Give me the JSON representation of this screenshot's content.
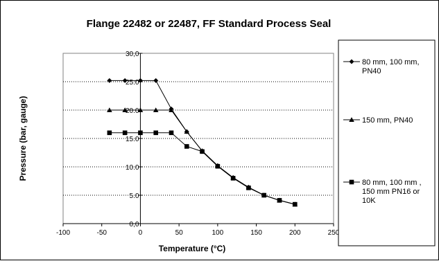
{
  "chart_data": {
    "type": "line",
    "title": "Flange 22482 or 22487, FF Standard Process Seal",
    "xlabel": "Temperature (°C)",
    "ylabel": "Pressure (bar, gauge)",
    "xlim": [
      -100,
      250
    ],
    "ylim": [
      0,
      30
    ],
    "x_ticks": [
      "-100",
      "-50",
      "0",
      "50",
      "100",
      "150",
      "200",
      "250"
    ],
    "y_ticks": [
      "0,0",
      "5.0",
      "10.0",
      "15.0",
      "20.0",
      "25.0",
      "30,0"
    ],
    "grid": "horizontal dotted",
    "legend_position": "right",
    "series": [
      {
        "name": [
          "80 mm, 100 mm,",
          "PN40"
        ],
        "marker": "diamond",
        "points": [
          [
            -40,
            25.2
          ],
          [
            -20,
            25.2
          ],
          [
            0,
            25.2
          ],
          [
            20,
            25.2
          ],
          [
            40,
            20.2
          ],
          [
            60,
            16.2
          ],
          [
            80,
            12.8
          ],
          [
            100,
            10.2
          ],
          [
            120,
            8.1
          ],
          [
            140,
            6.4
          ],
          [
            160,
            5.0
          ],
          [
            180,
            4.1
          ],
          [
            200,
            3.4
          ]
        ]
      },
      {
        "name": [
          "150 mm, PN40"
        ],
        "marker": "triangle",
        "points": [
          [
            -40,
            20.0
          ],
          [
            -20,
            20.0
          ],
          [
            0,
            20.0
          ],
          [
            20,
            20.0
          ],
          [
            40,
            20.0
          ],
          [
            60,
            16.2
          ],
          [
            80,
            12.8
          ],
          [
            100,
            10.2
          ],
          [
            120,
            8.1
          ],
          [
            140,
            6.4
          ],
          [
            160,
            5.0
          ],
          [
            180,
            4.1
          ],
          [
            200,
            3.4
          ]
        ]
      },
      {
        "name": [
          "80 mm, 100 mm ,",
          "150 mm PN16 or",
          "10K"
        ],
        "marker": "square",
        "points": [
          [
            -40,
            16.0
          ],
          [
            -20,
            16.0
          ],
          [
            0,
            16.0
          ],
          [
            20,
            16.0
          ],
          [
            40,
            16.0
          ],
          [
            60,
            13.6
          ],
          [
            80,
            12.7
          ],
          [
            100,
            10.1
          ],
          [
            120,
            8.0
          ],
          [
            140,
            6.3
          ],
          [
            160,
            5.0
          ],
          [
            180,
            4.1
          ],
          [
            200,
            3.4
          ]
        ]
      }
    ]
  }
}
